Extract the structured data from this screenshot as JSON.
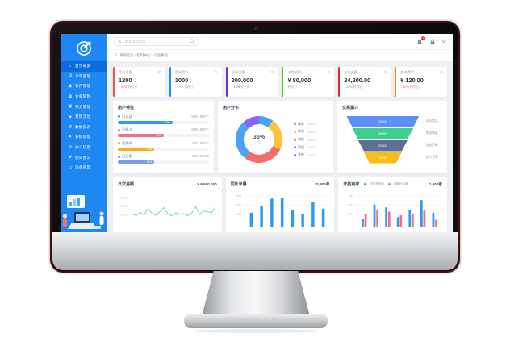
{
  "header": {
    "search_placeholder": "输入要查询的内容",
    "notification_count": "5"
  },
  "breadcrumb": {
    "path": "系统首页 / 控制中心 / 页面概览"
  },
  "sidebar": {
    "items": [
      {
        "label": "首页概览",
        "icon": "⌂",
        "name": "home",
        "active": true
      },
      {
        "label": "订单管理",
        "icon": "▤",
        "name": "orders"
      },
      {
        "label": "客户管理",
        "icon": "◉",
        "name": "customers"
      },
      {
        "label": "仓库管理",
        "icon": "▦",
        "name": "warehouse"
      },
      {
        "label": "积分管理",
        "icon": "▣",
        "name": "points"
      },
      {
        "label": "营销活动",
        "icon": "◈",
        "name": "marketing"
      },
      {
        "label": "数据报表",
        "icon": "◍",
        "name": "reports"
      },
      {
        "label": "系统管理",
        "icon": "✦",
        "name": "settings"
      },
      {
        "label": "办公信息",
        "icon": "✉",
        "name": "office-info"
      },
      {
        "label": "协同办公",
        "icon": "❖",
        "name": "collaboration"
      },
      {
        "label": "设备管理",
        "icon": "▭",
        "name": "devices"
      }
    ]
  },
  "cards": [
    {
      "label": "用户总数",
      "value": "1200",
      "unit": "元",
      "delta": "↑ 10%",
      "period": "较昨日",
      "delta_color": "#ff4d4f",
      "accent": "#ff4d4f"
    },
    {
      "label": "交易用户",
      "value": "1000",
      "unit": "元",
      "delta": "↑ 10%",
      "period": "较昨日",
      "delta_color": "#fa8c16",
      "accent": "#1890ff"
    },
    {
      "label": "总访问量",
      "value": "200,000",
      "unit": "",
      "delta": "↑ 15%",
      "period": "较上周",
      "delta_color": "#722ed1",
      "accent": "#722ed1"
    },
    {
      "label": "总交易额",
      "value": "¥ 80,000",
      "unit": "",
      "delta": "",
      "period": "较昨日",
      "delta_color": "#9aa0a6",
      "accent": "#52c41a"
    },
    {
      "label": "总收益额",
      "value": "24,200.00",
      "unit": "",
      "delta": "↓ 22%",
      "period": "较昨日",
      "delta_color": "#52c41a",
      "accent": "#f5222d"
    },
    {
      "label": "查询费用",
      "value": "¥ 120.00",
      "unit": "",
      "delta": "↑ 10%",
      "period": "较昨日",
      "delta_color": "#ff4d4f",
      "accent": "#fa8c16"
    }
  ],
  "chart_data": [
    {
      "type": "bar",
      "variant": "progress",
      "title": "用户特征",
      "categories": [
        "已认证",
        "已绑卡",
        "活跃中",
        "已注册"
      ],
      "values": [
        60,
        50,
        40,
        40
      ],
      "bar_labels": [
        "60%",
        "50%",
        "40%",
        "40%"
      ],
      "value_labels": [
        "600/1000个",
        "500/1000个",
        "400/1000个",
        "400/1000次"
      ],
      "colors": [
        "#2e9bf0",
        "#f56c86",
        "#faad14",
        "#7b9bf2"
      ]
    },
    {
      "type": "pie",
      "title": "用户分布",
      "center_value": "35%",
      "center_label": "占比",
      "labels": [
        "移动",
        "联通",
        "电信",
        "网通",
        "其他"
      ],
      "values": [
        10,
        22,
        28,
        28,
        12
      ],
      "value_labels": [
        "10000",
        "10000",
        "10000",
        "10000",
        "10000"
      ],
      "colors": [
        "#4aa3f5",
        "#fbc43c",
        "#f56c6c",
        "#4aa3f5",
        "#8468f0"
      ],
      "legend_position": "right"
    },
    {
      "type": "funnel",
      "title": "交易漏斗",
      "labels": [
        "访问商品",
        "加购数量",
        "生成订单",
        "支付订单"
      ],
      "values": [
        "20000",
        "20000",
        "20000",
        "14000"
      ],
      "colors": [
        "#5b8ff9",
        "#3ecf8e",
        "#5d7092",
        "#f6bd16"
      ]
    },
    {
      "type": "line",
      "title": "日交易额",
      "total": "¥ 9,500,000",
      "y_ticks": [
        30000,
        20000,
        10000
      ],
      "ymax": 36000,
      "color": "#5fd38d",
      "values": [
        11000,
        9000,
        13000,
        10000,
        17000,
        11500,
        9500,
        14000,
        18500,
        11000,
        8500,
        12500,
        10500,
        11500,
        9000,
        12000,
        19500,
        11000,
        14500,
        13500,
        12500,
        19000
      ]
    },
    {
      "type": "bar",
      "title": "同比单量",
      "total": "10,300单",
      "y_ticks": [
        900,
        600,
        300
      ],
      "ymax": 1000,
      "color": "#2e9bf0",
      "values": [
        350,
        560,
        810,
        830,
        430,
        300,
        690,
        480
      ]
    },
    {
      "type": "bar",
      "variant": "grouped",
      "title": "开拓商家",
      "total": "1,900家",
      "y_ticks": [
        900,
        600,
        300
      ],
      "ymax": 1000,
      "categories": [
        "1",
        "2",
        "3",
        "4",
        "5",
        "6",
        "7"
      ],
      "series": [
        {
          "name": "外部开发商",
          "color": "#2e9bf0",
          "values": [
            150,
            620,
            520,
            200,
            450,
            760,
            350
          ]
        },
        {
          "name": "自营开发商",
          "color": "#f56c86",
          "values": [
            300,
            450,
            380,
            260,
            300,
            420,
            120
          ]
        }
      ]
    }
  ]
}
